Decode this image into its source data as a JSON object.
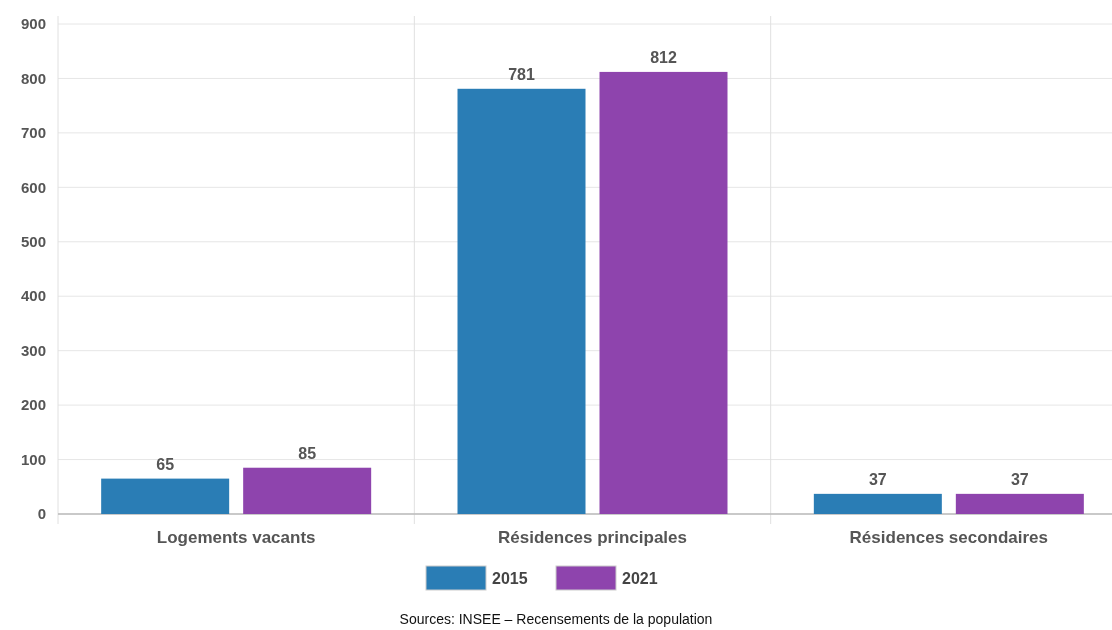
{
  "chart_data": {
    "type": "bar",
    "categories": [
      "Logements vacants",
      "Résidences principales",
      "Résidences secondaires"
    ],
    "series": [
      {
        "name": "2015",
        "color": "#2a7db5",
        "values": [
          65,
          781,
          37
        ]
      },
      {
        "name": "2021",
        "color": "#8e44ad",
        "values": [
          85,
          812,
          37
        ]
      }
    ],
    "ylim": [
      0,
      900
    ],
    "yticks": [
      0,
      100,
      200,
      300,
      400,
      500,
      600,
      700,
      800,
      900
    ],
    "grid": true,
    "legend": "bottom",
    "data_labels": true,
    "annotations": [
      "Sources: INSEE – Recensements de la population"
    ]
  }
}
